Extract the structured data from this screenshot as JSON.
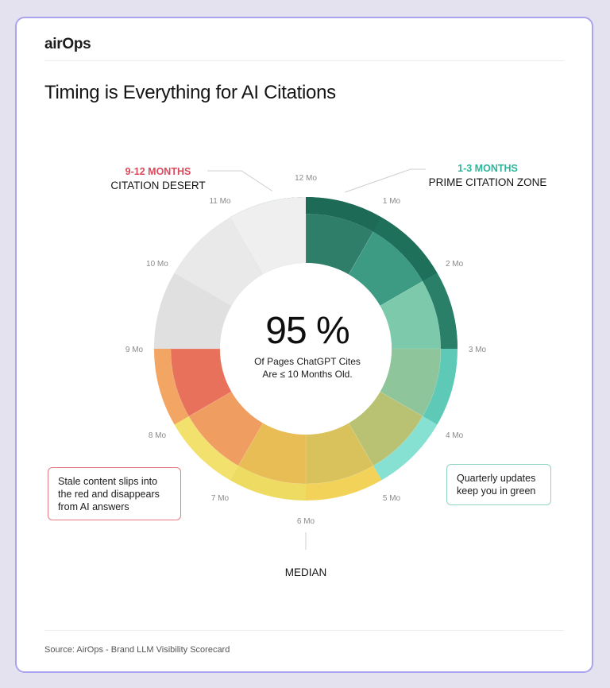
{
  "brand": {
    "logo_text": "airOps"
  },
  "title": "Timing is Everything for AI Citations",
  "source": "Source: AirOps - Brand LLM Visibility Scorecard",
  "center": {
    "big_value": "95 %",
    "caption_line1": "Of Pages ChatGPT Cites",
    "caption_line2": "Are ≤ 10 Months Old."
  },
  "zones": {
    "left": {
      "range": "9-12 MONTHS",
      "label": "CITATION DESERT"
    },
    "right": {
      "range": "1-3 MONTHS",
      "label": "PRIME CITATION ZONE"
    }
  },
  "median_label": "MEDIAN",
  "callouts": {
    "stale": "Stale content slips into the red and disappears from AI answers",
    "quarterly": "Quarterly updates keep you in green"
  },
  "colors": {
    "green_dark": "#1d6a57",
    "teal": "#5ec9b6",
    "yellow": "#f2d259",
    "orange": "#ee9a5a",
    "red_zone": "#e66a5e",
    "grey": "#dedede",
    "callout_red": "#e47d84",
    "callout_green": "#8fd5c3"
  },
  "chart_data": {
    "type": "donut",
    "axis": "months",
    "tick_labels": [
      "1 Mo",
      "2 Mo",
      "3 Mo",
      "4 Mo",
      "5 Mo",
      "6 Mo",
      "7 Mo",
      "8 Mo",
      "9 Mo",
      "10 Mo",
      "11 Mo",
      "12 Mo"
    ],
    "zones": [
      {
        "name": "PRIME CITATION ZONE",
        "from": 0,
        "to": 3
      },
      {
        "name": "MEDIAN",
        "at": 6
      },
      {
        "name": "CITATION DESERT",
        "from": 9,
        "to": 12
      }
    ],
    "headline_value": 95
  }
}
